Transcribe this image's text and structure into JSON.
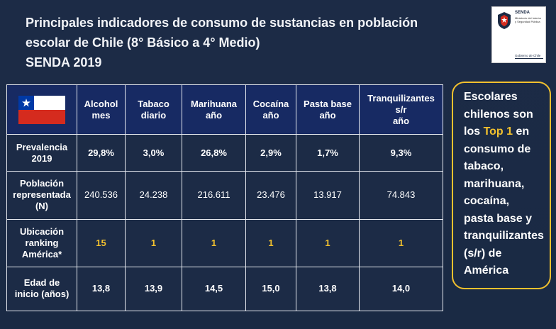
{
  "title": {
    "line1": "Principales indicadores de consumo de sustancias en población",
    "line2": "escolar de Chile (8° Básico a 4° Medio)",
    "line3": "SENDA 2019"
  },
  "logo": {
    "name": "SENDA",
    "subtitle_line1": "Ministerio del Interior",
    "subtitle_line2": "y Seguridad Pública",
    "footer": "Gobierno de Chile"
  },
  "colors": {
    "background": "#1c2b46",
    "header": "#172a63",
    "accent": "#f2c12e"
  },
  "table": {
    "columns": [
      {
        "line1": "Alcohol",
        "line2": "mes",
        "line3": ""
      },
      {
        "line1": "Tabaco",
        "line2": "diario",
        "line3": ""
      },
      {
        "line1": "Marihuana",
        "line2": "año",
        "line3": ""
      },
      {
        "line1": "Cocaína",
        "line2": "año",
        "line3": ""
      },
      {
        "line1": "Pasta base",
        "line2": "año",
        "line3": ""
      },
      {
        "line1": "Tranquilizantes",
        "line2": "s/r",
        "line3": "año"
      }
    ],
    "rows": [
      {
        "label": [
          "Prevalencia",
          "2019",
          ""
        ],
        "values": [
          "29,8%",
          "3,0%",
          "26,8%",
          "2,9%",
          "1,7%",
          "9,3%"
        ]
      },
      {
        "label": [
          "Población",
          "representada",
          "(N)"
        ],
        "values": [
          "240.536",
          "24.238",
          "216.611",
          "23.476",
          "13.917",
          "74.843"
        ]
      },
      {
        "label": [
          "Ubicación",
          "ranking",
          "América*"
        ],
        "values": [
          "15",
          "1",
          "1",
          "1",
          "1",
          "1"
        ]
      },
      {
        "label": [
          "Edad de",
          "inicio (años)",
          ""
        ],
        "values": [
          "13,8",
          "13,9",
          "14,5",
          "15,0",
          "13,8",
          "14,0"
        ]
      }
    ]
  },
  "callout": {
    "l1": "Escolares",
    "l2": "chilenos son",
    "l3_pre": "los ",
    "l3_hl": "Top 1",
    "l3_post": " en",
    "l4": "consumo de",
    "l5": "tabaco,",
    "l6": "marihuana,",
    "l7": "cocaína,",
    "l8": "pasta base y",
    "l9": "tranquilizantes",
    "l10": "(s/r) de",
    "l11": "América"
  }
}
